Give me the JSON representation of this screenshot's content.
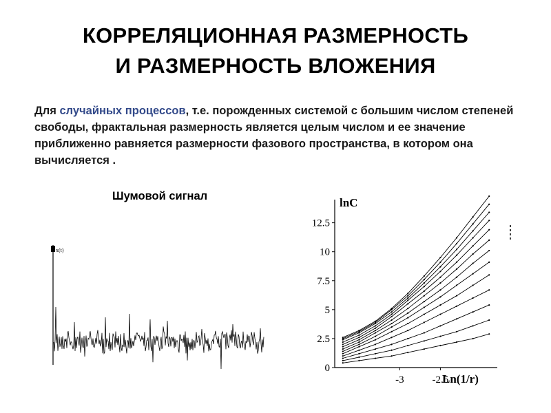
{
  "slide": {
    "title_line1": "КОРРЕЛЯЦИОННАЯ РАЗМЕРНОСТЬ",
    "title_line2": "И РАЗМЕРНОСТЬ ВЛОЖЕНИЯ",
    "para_prefix": "Для ",
    "para_highlight": "случайных процессов",
    "para_rest": ", т.е. порожденных системой с большим числом степеней свободы, фрактальная размерность является целым числом и ее значение приближенно равняется размерности фазового пространства, в котором она вычисляется ."
  },
  "noise_chart": {
    "label": "Шумовой сигнал",
    "axis_label": "x(t)"
  },
  "chart_data": {
    "type": "line",
    "xlabel": "Ln(1/r)",
    "ylabel": "lnC",
    "x_ticks": [
      "-3",
      "-2.5"
    ],
    "y_ticks": [
      "0",
      "2.5",
      "5",
      "7.5",
      "10",
      "12.5"
    ],
    "xlim": [
      -3.8,
      -1.8
    ],
    "ylim": [
      0,
      14.5
    ],
    "x": [
      -3.7,
      -3.5,
      -3.3,
      -3.1,
      -2.9,
      -2.7,
      -2.5,
      -2.3,
      -2.1,
      -1.9
    ],
    "series": [
      {
        "values": [
          0.4,
          0.6,
          0.8,
          1.0,
          1.3,
          1.6,
          1.9,
          2.2,
          2.5,
          2.9
        ]
      },
      {
        "values": [
          0.6,
          0.9,
          1.2,
          1.5,
          1.9,
          2.3,
          2.7,
          3.1,
          3.6,
          4.1
        ]
      },
      {
        "values": [
          0.8,
          1.2,
          1.6,
          2.0,
          2.5,
          3.0,
          3.6,
          4.2,
          4.8,
          5.4
        ]
      },
      {
        "values": [
          1.0,
          1.5,
          2.0,
          2.6,
          3.2,
          3.9,
          4.6,
          5.3,
          6.0,
          6.7
        ]
      },
      {
        "values": [
          1.2,
          1.8,
          2.4,
          3.1,
          3.8,
          4.6,
          5.4,
          6.2,
          7.1,
          8.0
        ]
      },
      {
        "values": [
          1.4,
          2.0,
          2.7,
          3.5,
          4.3,
          5.2,
          6.1,
          7.1,
          8.1,
          9.1
        ]
      },
      {
        "values": [
          1.6,
          2.2,
          3.0,
          3.8,
          4.7,
          5.7,
          6.7,
          7.8,
          9.0,
          10.1
        ]
      },
      {
        "values": [
          1.8,
          2.4,
          3.2,
          4.1,
          5.1,
          6.2,
          7.3,
          8.5,
          9.8,
          11.0
        ]
      },
      {
        "values": [
          2.0,
          2.6,
          3.4,
          4.4,
          5.5,
          6.6,
          7.8,
          9.1,
          10.5,
          11.9
        ]
      },
      {
        "values": [
          2.2,
          2.8,
          3.6,
          4.6,
          5.8,
          7.0,
          8.3,
          9.7,
          11.2,
          12.7
        ]
      },
      {
        "values": [
          2.4,
          3.0,
          3.8,
          4.8,
          6.0,
          7.3,
          8.7,
          10.2,
          11.8,
          13.4
        ]
      },
      {
        "values": [
          2.5,
          3.1,
          3.9,
          5.0,
          6.2,
          7.6,
          9.1,
          10.7,
          12.4,
          14.1
        ]
      },
      {
        "values": [
          2.6,
          3.2,
          4.0,
          5.1,
          6.4,
          7.9,
          9.5,
          11.2,
          13.0,
          14.8
        ]
      }
    ]
  }
}
